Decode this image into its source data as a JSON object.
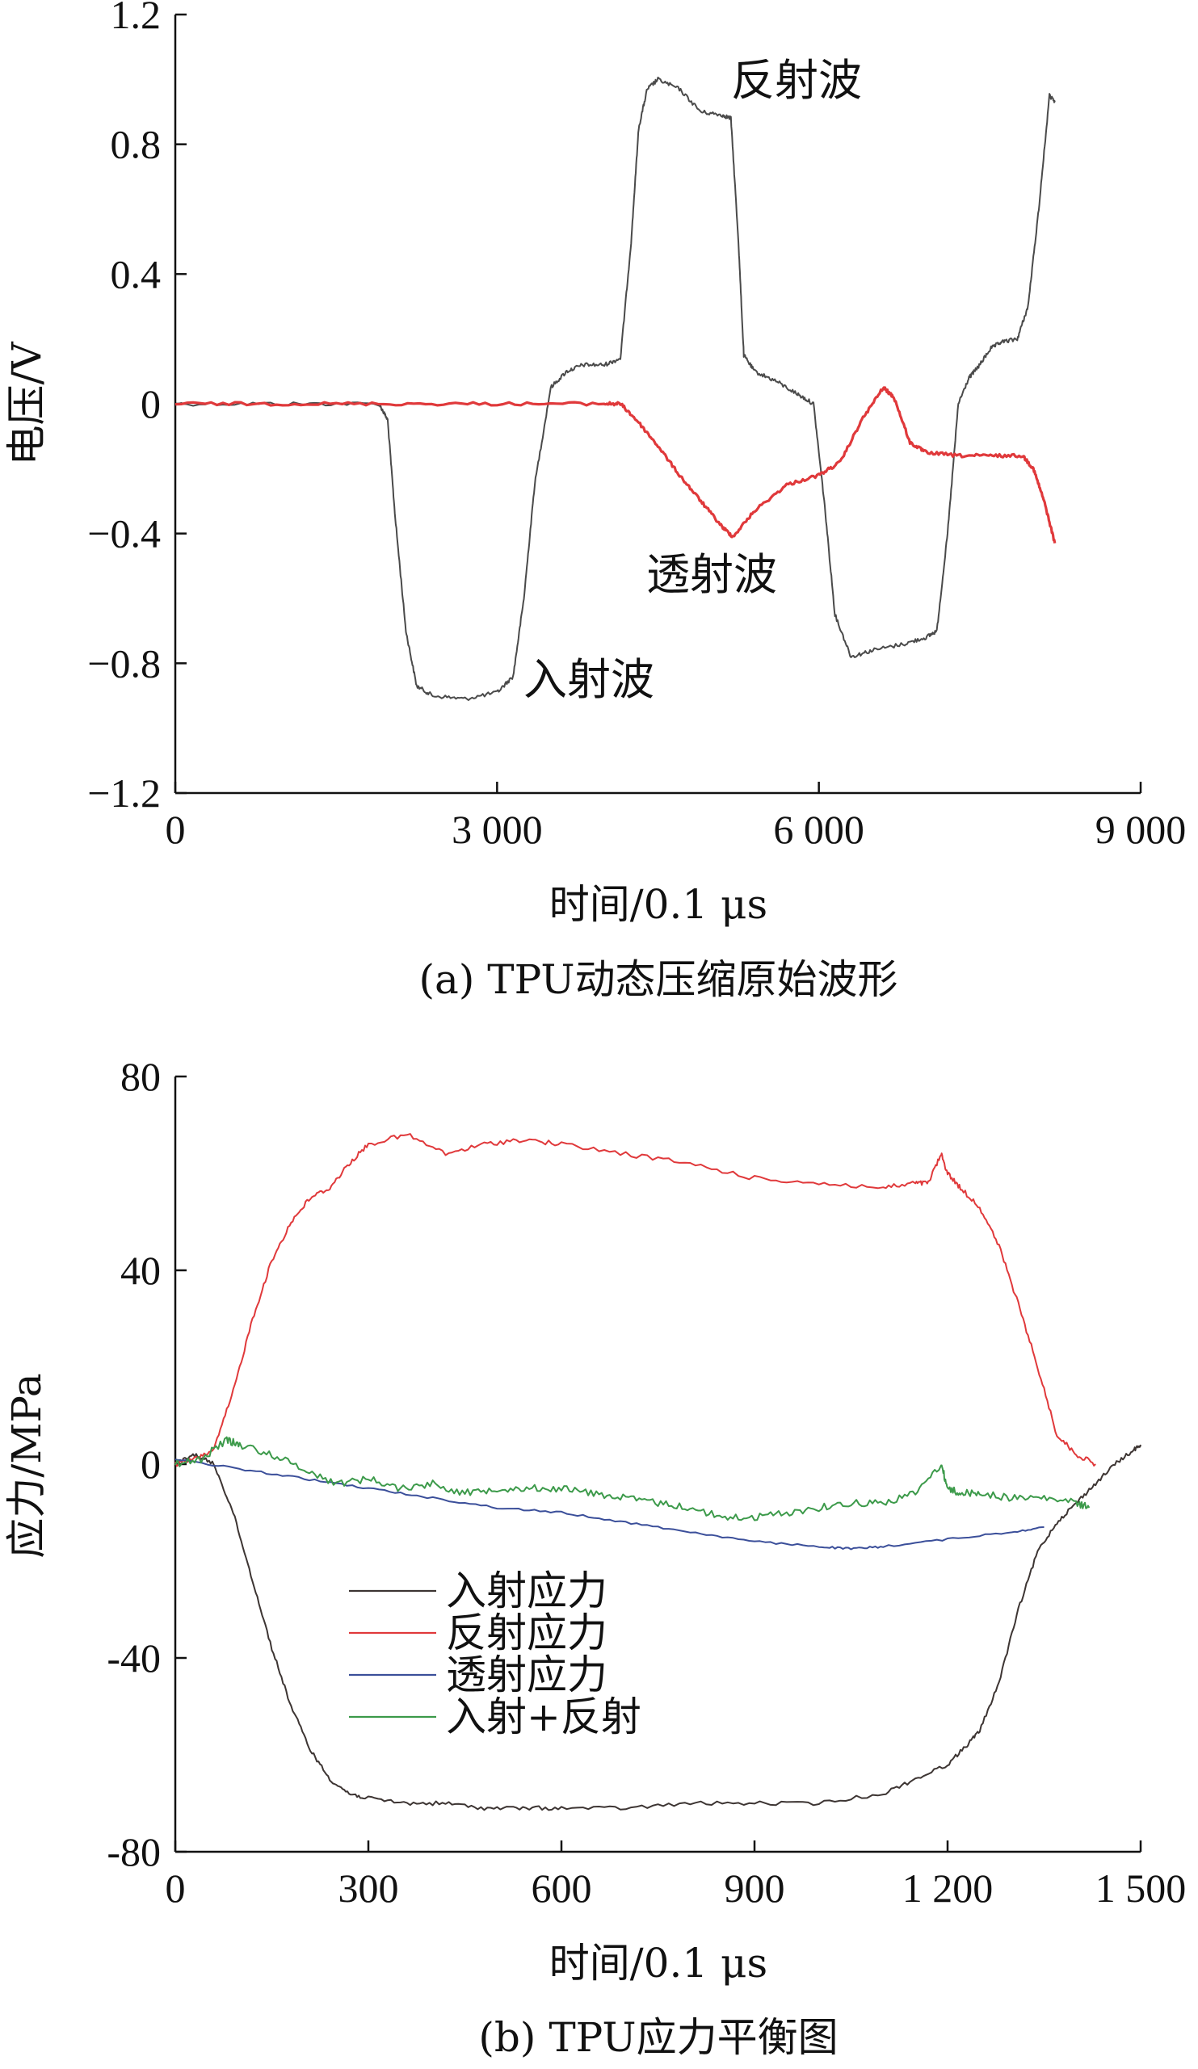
{
  "chart_data": [
    {
      "type": "line",
      "caption": "(a) TPU动态压缩原始波形",
      "xlabel": "时间/0.1 μs",
      "ylabel": "电压/V",
      "xlim": [
        0,
        9000
      ],
      "ylim": [
        -1.2,
        1.2
      ],
      "xticks": [
        0,
        3000,
        6000,
        9000
      ],
      "xtick_labels": [
        "0",
        "3 000",
        "6 000",
        "9 000"
      ],
      "yticks": [
        1.2,
        0.8,
        0.4,
        0,
        -0.4,
        -0.8,
        -1.2
      ],
      "ytick_labels": [
        "1.2",
        "0.8",
        "0.4",
        "0",
        "−0.4",
        "−0.8",
        "−1.2"
      ],
      "grid": false,
      "annotations": [
        {
          "text": "反射波",
          "x": 5200,
          "y": 1.0
        },
        {
          "text": "透射波",
          "x": 4400,
          "y": -0.53
        },
        {
          "text": "入射波",
          "x": 3300,
          "y": -0.86
        }
      ],
      "series": [
        {
          "color": "#4a4a4a",
          "x": [
            0,
            1000,
            1900,
            1980,
            2050,
            2150,
            2250,
            2400,
            2700,
            3000,
            3150,
            3250,
            3350,
            3500,
            3650,
            3800,
            4000,
            4150,
            4250,
            4320,
            4400,
            4500,
            4700,
            4900,
            5100,
            5180,
            5250,
            5300,
            5400,
            5600,
            5800,
            5950,
            6050,
            6150,
            6300,
            6500,
            6800,
            7000,
            7100,
            7200,
            7300,
            7400,
            7500,
            7600,
            7700,
            7850,
            7950,
            8050,
            8150,
            8200
          ],
          "y": [
            0,
            0,
            0,
            -0.05,
            -0.35,
            -0.7,
            -0.87,
            -0.9,
            -0.91,
            -0.89,
            -0.84,
            -0.6,
            -0.25,
            0.05,
            0.1,
            0.12,
            0.12,
            0.14,
            0.5,
            0.85,
            0.97,
            1.0,
            0.97,
            0.9,
            0.89,
            0.88,
            0.5,
            0.15,
            0.1,
            0.07,
            0.03,
            0.0,
            -0.3,
            -0.65,
            -0.78,
            -0.76,
            -0.74,
            -0.72,
            -0.7,
            -0.4,
            0.0,
            0.08,
            0.12,
            0.17,
            0.19,
            0.2,
            0.3,
            0.6,
            0.95,
            0.93
          ]
        },
        {
          "color": "#e0393b",
          "x": [
            0,
            1000,
            2000,
            3000,
            4000,
            4150,
            4300,
            4500,
            4700,
            4900,
            5100,
            5200,
            5400,
            5700,
            6000,
            6200,
            6400,
            6600,
            6700,
            6850,
            7000,
            7300,
            7600,
            7900,
            8000,
            8100,
            8200
          ],
          "y": [
            0,
            0,
            0,
            0,
            0,
            0,
            -0.05,
            -0.13,
            -0.22,
            -0.3,
            -0.38,
            -0.41,
            -0.33,
            -0.25,
            -0.22,
            -0.18,
            -0.05,
            0.05,
            0.02,
            -0.12,
            -0.15,
            -0.16,
            -0.16,
            -0.16,
            -0.2,
            -0.3,
            -0.43
          ]
        }
      ]
    },
    {
      "type": "line",
      "caption": "(b) TPU应力平衡图",
      "xlabel": "时间/0.1 μs",
      "ylabel": "应力/MPa",
      "xlim": [
        0,
        1500
      ],
      "ylim": [
        -80,
        80
      ],
      "xticks": [
        0,
        300,
        600,
        900,
        1200,
        1500
      ],
      "xtick_labels": [
        "0",
        "300",
        "600",
        "900",
        "1 200",
        "1 500"
      ],
      "yticks": [
        80,
        40,
        0,
        -40,
        -80
      ],
      "ytick_labels": [
        "80",
        "40",
        "0",
        "-40",
        "-80"
      ],
      "grid": false,
      "legend_position": "bottom-left",
      "series": [
        {
          "name": "入射应力",
          "color": "#3d3533",
          "x": [
            0,
            30,
            60,
            90,
            120,
            150,
            180,
            210,
            240,
            270,
            300,
            360,
            420,
            480,
            540,
            600,
            700,
            800,
            900,
            1000,
            1100,
            1150,
            1200,
            1230,
            1250,
            1280,
            1310,
            1340,
            1370,
            1400,
            1430,
            1460,
            1490,
            1500
          ],
          "y": [
            0,
            2,
            0,
            -10,
            -24,
            -38,
            -50,
            -59,
            -65,
            -68,
            -69,
            -70,
            -70,
            -71,
            -71,
            -71,
            -71,
            -70,
            -70,
            -70,
            -68,
            -65,
            -62,
            -58,
            -55,
            -45,
            -30,
            -18,
            -12,
            -8,
            -4,
            0,
            3,
            4
          ]
        },
        {
          "name": "反射应力",
          "color": "#e0393b",
          "x": [
            0,
            30,
            60,
            90,
            120,
            150,
            180,
            210,
            240,
            270,
            300,
            360,
            420,
            480,
            540,
            600,
            700,
            800,
            900,
            1000,
            1100,
            1150,
            1170,
            1190,
            1200,
            1220,
            1250,
            1280,
            1310,
            1340,
            1370,
            1400,
            1430
          ],
          "y": [
            0,
            1,
            3,
            15,
            30,
            42,
            50,
            55,
            57,
            62,
            66,
            68,
            64,
            66,
            67,
            66,
            64,
            62,
            59,
            58,
            57,
            58,
            58,
            64,
            60,
            57,
            53,
            45,
            33,
            20,
            6,
            2,
            0
          ]
        },
        {
          "name": "透射应力",
          "color": "#3b4f9a",
          "x": [
            0,
            100,
            200,
            300,
            400,
            500,
            600,
            700,
            800,
            900,
            1000,
            1050,
            1100,
            1200,
            1300,
            1350
          ],
          "y": [
            1,
            -1,
            -3,
            -5,
            -7,
            -9,
            -10,
            -12,
            -14,
            -16,
            -17,
            -17.5,
            -17,
            -15.5,
            -14,
            -13
          ]
        },
        {
          "name": "入射+反射",
          "color": "#3c9a4a",
          "x": [
            0,
            40,
            80,
            100,
            150,
            200,
            250,
            300,
            350,
            400,
            450,
            500,
            550,
            600,
            650,
            700,
            750,
            800,
            850,
            900,
            950,
            1000,
            1050,
            1100,
            1150,
            1190,
            1200,
            1220,
            1250,
            1300,
            1350,
            1400,
            1420
          ],
          "y": [
            0,
            1,
            5,
            4,
            2,
            -1,
            -4,
            -3,
            -5,
            -4,
            -6,
            -5,
            -5,
            -5,
            -6,
            -7,
            -8,
            -9,
            -11,
            -11,
            -10,
            -9,
            -8,
            -8,
            -6,
            0,
            -5,
            -6,
            -6,
            -7,
            -7,
            -8,
            -9
          ]
        }
      ]
    }
  ]
}
